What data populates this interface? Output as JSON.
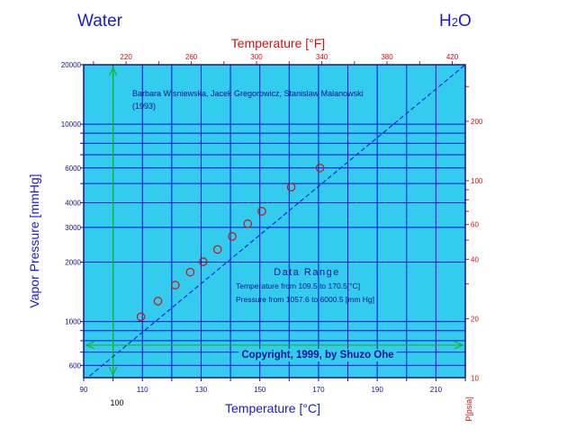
{
  "header": {
    "substance": "Water",
    "formula_main": "H",
    "formula_sub": "2",
    "formula_end": "O"
  },
  "plot": {
    "background": "#33ccee",
    "grid_color": "#0a0ad8",
    "series_color": "#d01010",
    "fit_color": "#0a0ad8",
    "arrow_color": "#16b816"
  },
  "chart_data": {
    "type": "scatter",
    "title": "",
    "xlabel": "Temperature [°C]",
    "x2label": "Temperature [°F]",
    "ylabel": "Vapor Pressure  [mmHg]",
    "y2label": "P[psia]",
    "xlim": [
      90,
      220
    ],
    "ylim": [
      520,
      20000
    ],
    "x2lim": [
      194,
      428
    ],
    "y2lim": [
      10,
      386.7
    ],
    "y_scale": "log",
    "grid": true,
    "x_ticks": [
      "90",
      "110",
      "130",
      "150",
      "170",
      "190",
      "210"
    ],
    "x2_ticks": [
      "220",
      "260",
      "300",
      "340",
      "380",
      "420"
    ],
    "y_ticks": [
      "600",
      "1000",
      "2000",
      "3000",
      "4000",
      "6000",
      "10000",
      "20000"
    ],
    "y2_ticks": [
      "10",
      "20",
      "40",
      "60",
      "100",
      "200"
    ],
    "series": [
      {
        "type": "scatter",
        "x": [
          109.5,
          115.3,
          121.2,
          126.3,
          130.7,
          135.6,
          140.6,
          145.9,
          150.7,
          160.7,
          170.5
        ],
        "y": [
          1057.6,
          1270,
          1530,
          1780,
          2010,
          2320,
          2700,
          3130,
          3620,
          4800,
          6000.5
        ]
      },
      {
        "type": "line",
        "x": [
          92,
          220
        ],
        "y": [
          530,
          20000
        ]
      }
    ],
    "annotations": {
      "authors": "Barbara Wisniewska, Jacek Gregorowicz, Stanislaw Malanowski",
      "year": "(1993)",
      "range_title": "Data Range",
      "range_temp": "Temperature from 109.5 to 170.5[°C]",
      "range_pres": "Pressure from 1057.6 to 6000.5 [mm Hg]",
      "copyright": "Copyright, 1999, by Shuzo Ohe",
      "boiling_label": "100"
    },
    "markers": {
      "normal_boiling_point_c": 100,
      "atmospheric_pressure_mmhg": 760
    }
  }
}
